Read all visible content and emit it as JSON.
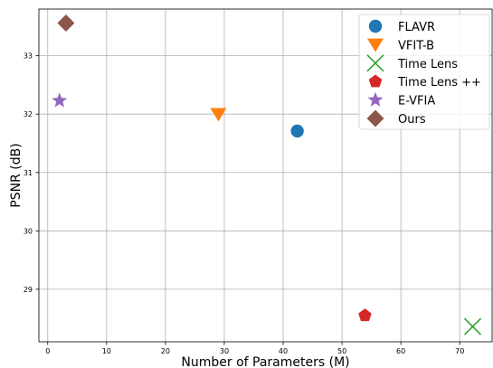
{
  "chart_data": {
    "type": "scatter",
    "title": "",
    "xlabel": "Number of Parameters (M)",
    "ylabel": "PSNR (dB)",
    "xlim": [
      -1.5,
      75.5
    ],
    "ylim": [
      28.1,
      33.8
    ],
    "xticks": [
      0,
      10,
      20,
      30,
      40,
      50,
      60,
      70
    ],
    "yticks": [
      29,
      30,
      31,
      32,
      33
    ],
    "grid": true,
    "legend_position": "top-right",
    "series": [
      {
        "name": "FLAVR",
        "marker": "circle",
        "color": "#1f77b4",
        "x": 42.4,
        "y": 31.71
      },
      {
        "name": "VFIT-B",
        "marker": "triangle-down",
        "color": "#ff7f0e",
        "x": 29.0,
        "y": 32.0
      },
      {
        "name": "Time Lens",
        "marker": "x",
        "color": "#2ca02c",
        "x": 72.2,
        "y": 28.36
      },
      {
        "name": "Time Lens ++",
        "marker": "pentagon",
        "color": "#d62728",
        "x": 53.9,
        "y": 28.55
      },
      {
        "name": "E-VFIA",
        "marker": "star",
        "color": "#9467bd",
        "x": 2.0,
        "y": 32.23
      },
      {
        "name": "Ours",
        "marker": "diamond",
        "color": "#8c564b",
        "x": 3.1,
        "y": 33.56
      }
    ]
  }
}
